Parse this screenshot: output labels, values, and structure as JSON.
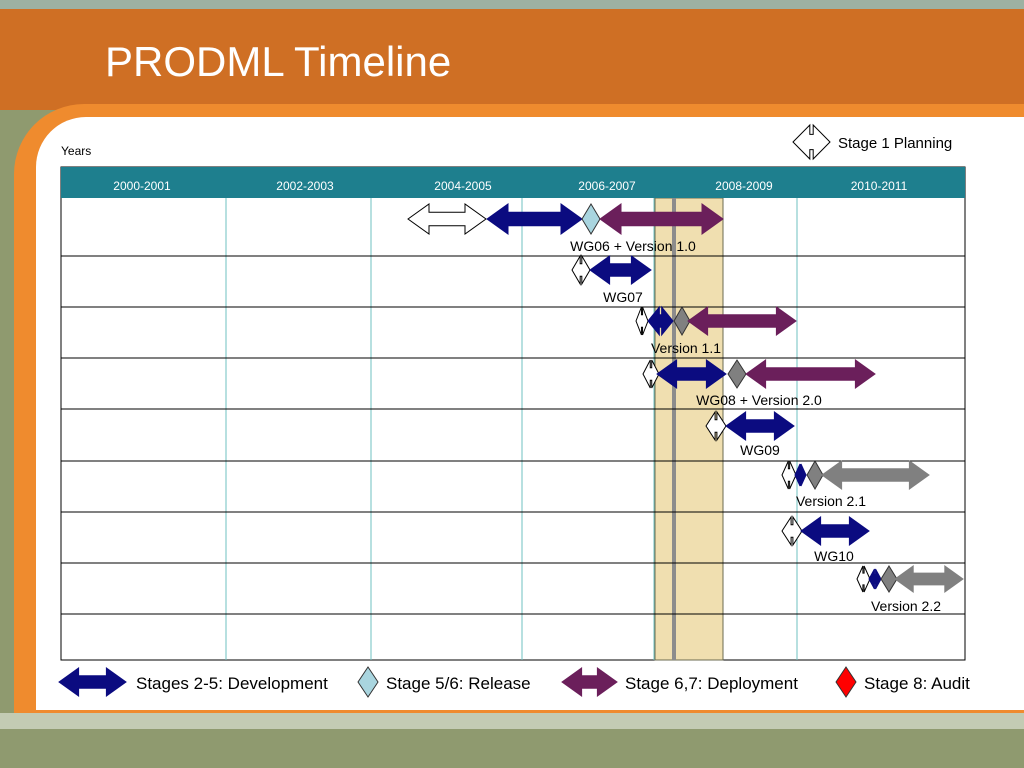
{
  "slide": {
    "title": "PRODML Timeline",
    "axis_label": "Years"
  },
  "legend": {
    "planning": "Stage 1 Planning",
    "development": "Stages 2-5: Development",
    "release": "Stage 5/6: Release",
    "deployment": "Stage 6,7: Deployment",
    "audit": "Stage 8: Audit"
  },
  "columns": [
    "2000-2001",
    "2002-2003",
    "2004-2005",
    "2006-2007",
    "2008-2009",
    "2010-2011"
  ],
  "rows": [
    {
      "label": "WG06 + Version 1.0"
    },
    {
      "label": "WG07"
    },
    {
      "label": "Version 1.1"
    },
    {
      "label": "WG08 + Version 2.0"
    },
    {
      "label": "WG09"
    },
    {
      "label": "Version 2.1"
    },
    {
      "label": "WG10"
    },
    {
      "label": "Version 2.2"
    },
    {
      "label": ""
    }
  ],
  "colors": {
    "header": "#cf6f24",
    "rim": "#ef8b2e",
    "table_header": "#1e7f8e",
    "grid": "#6fc0c0",
    "development": "#0b0b80",
    "release": "#a9d5df",
    "deployment": "#6b1f5b",
    "gray_release": "#808080",
    "gray_deployment": "#808080",
    "audit": "#ff0000",
    "highlight": "#f0dfb0"
  }
}
